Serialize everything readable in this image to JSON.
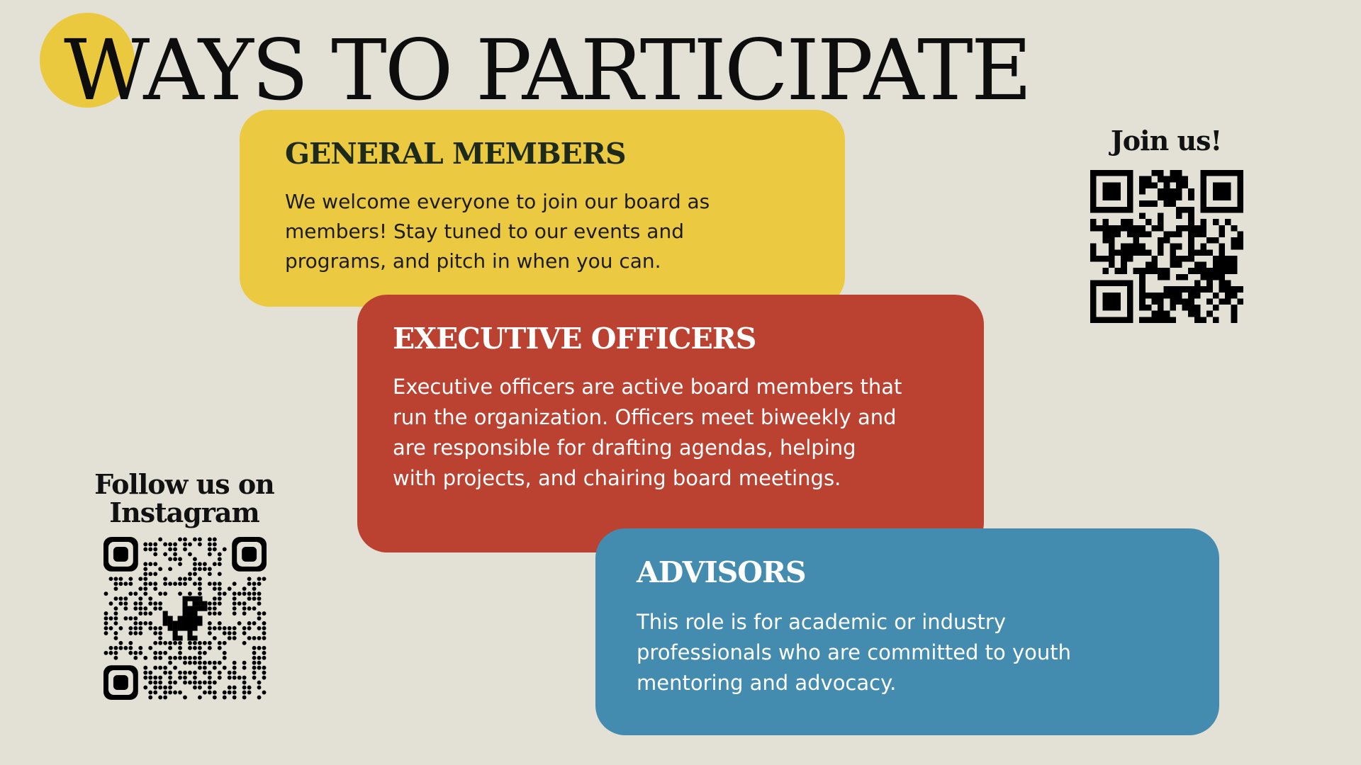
{
  "title": "WAYS TO PARTICIPATE",
  "colors": {
    "background": "#e3e0d6",
    "yellow": "#ebc940",
    "red": "#bb4231",
    "blue": "#448caf",
    "ink": "#111111"
  },
  "cards": [
    {
      "heading": "GENERAL MEMBERS",
      "body": "We welcome everyone to join our board as members! Stay tuned to our events and programs, and pitch in when you can."
    },
    {
      "heading": "EXECUTIVE OFFICERS",
      "body": "Executive officers are active board members that run the organization. Officers meet biweekly and are responsible for drafting agendas, helping with projects, and chairing board meetings."
    },
    {
      "heading": "ADVISORS",
      "body": "This role is for academic or industry professionals who are committed to youth mentoring and advocacy."
    }
  ],
  "join": {
    "label": "Join us!",
    "icon": "qr-code-icon"
  },
  "instagram": {
    "line1": "Follow us on",
    "line2": "Instagram",
    "icon": "qr-code-dino-icon"
  }
}
